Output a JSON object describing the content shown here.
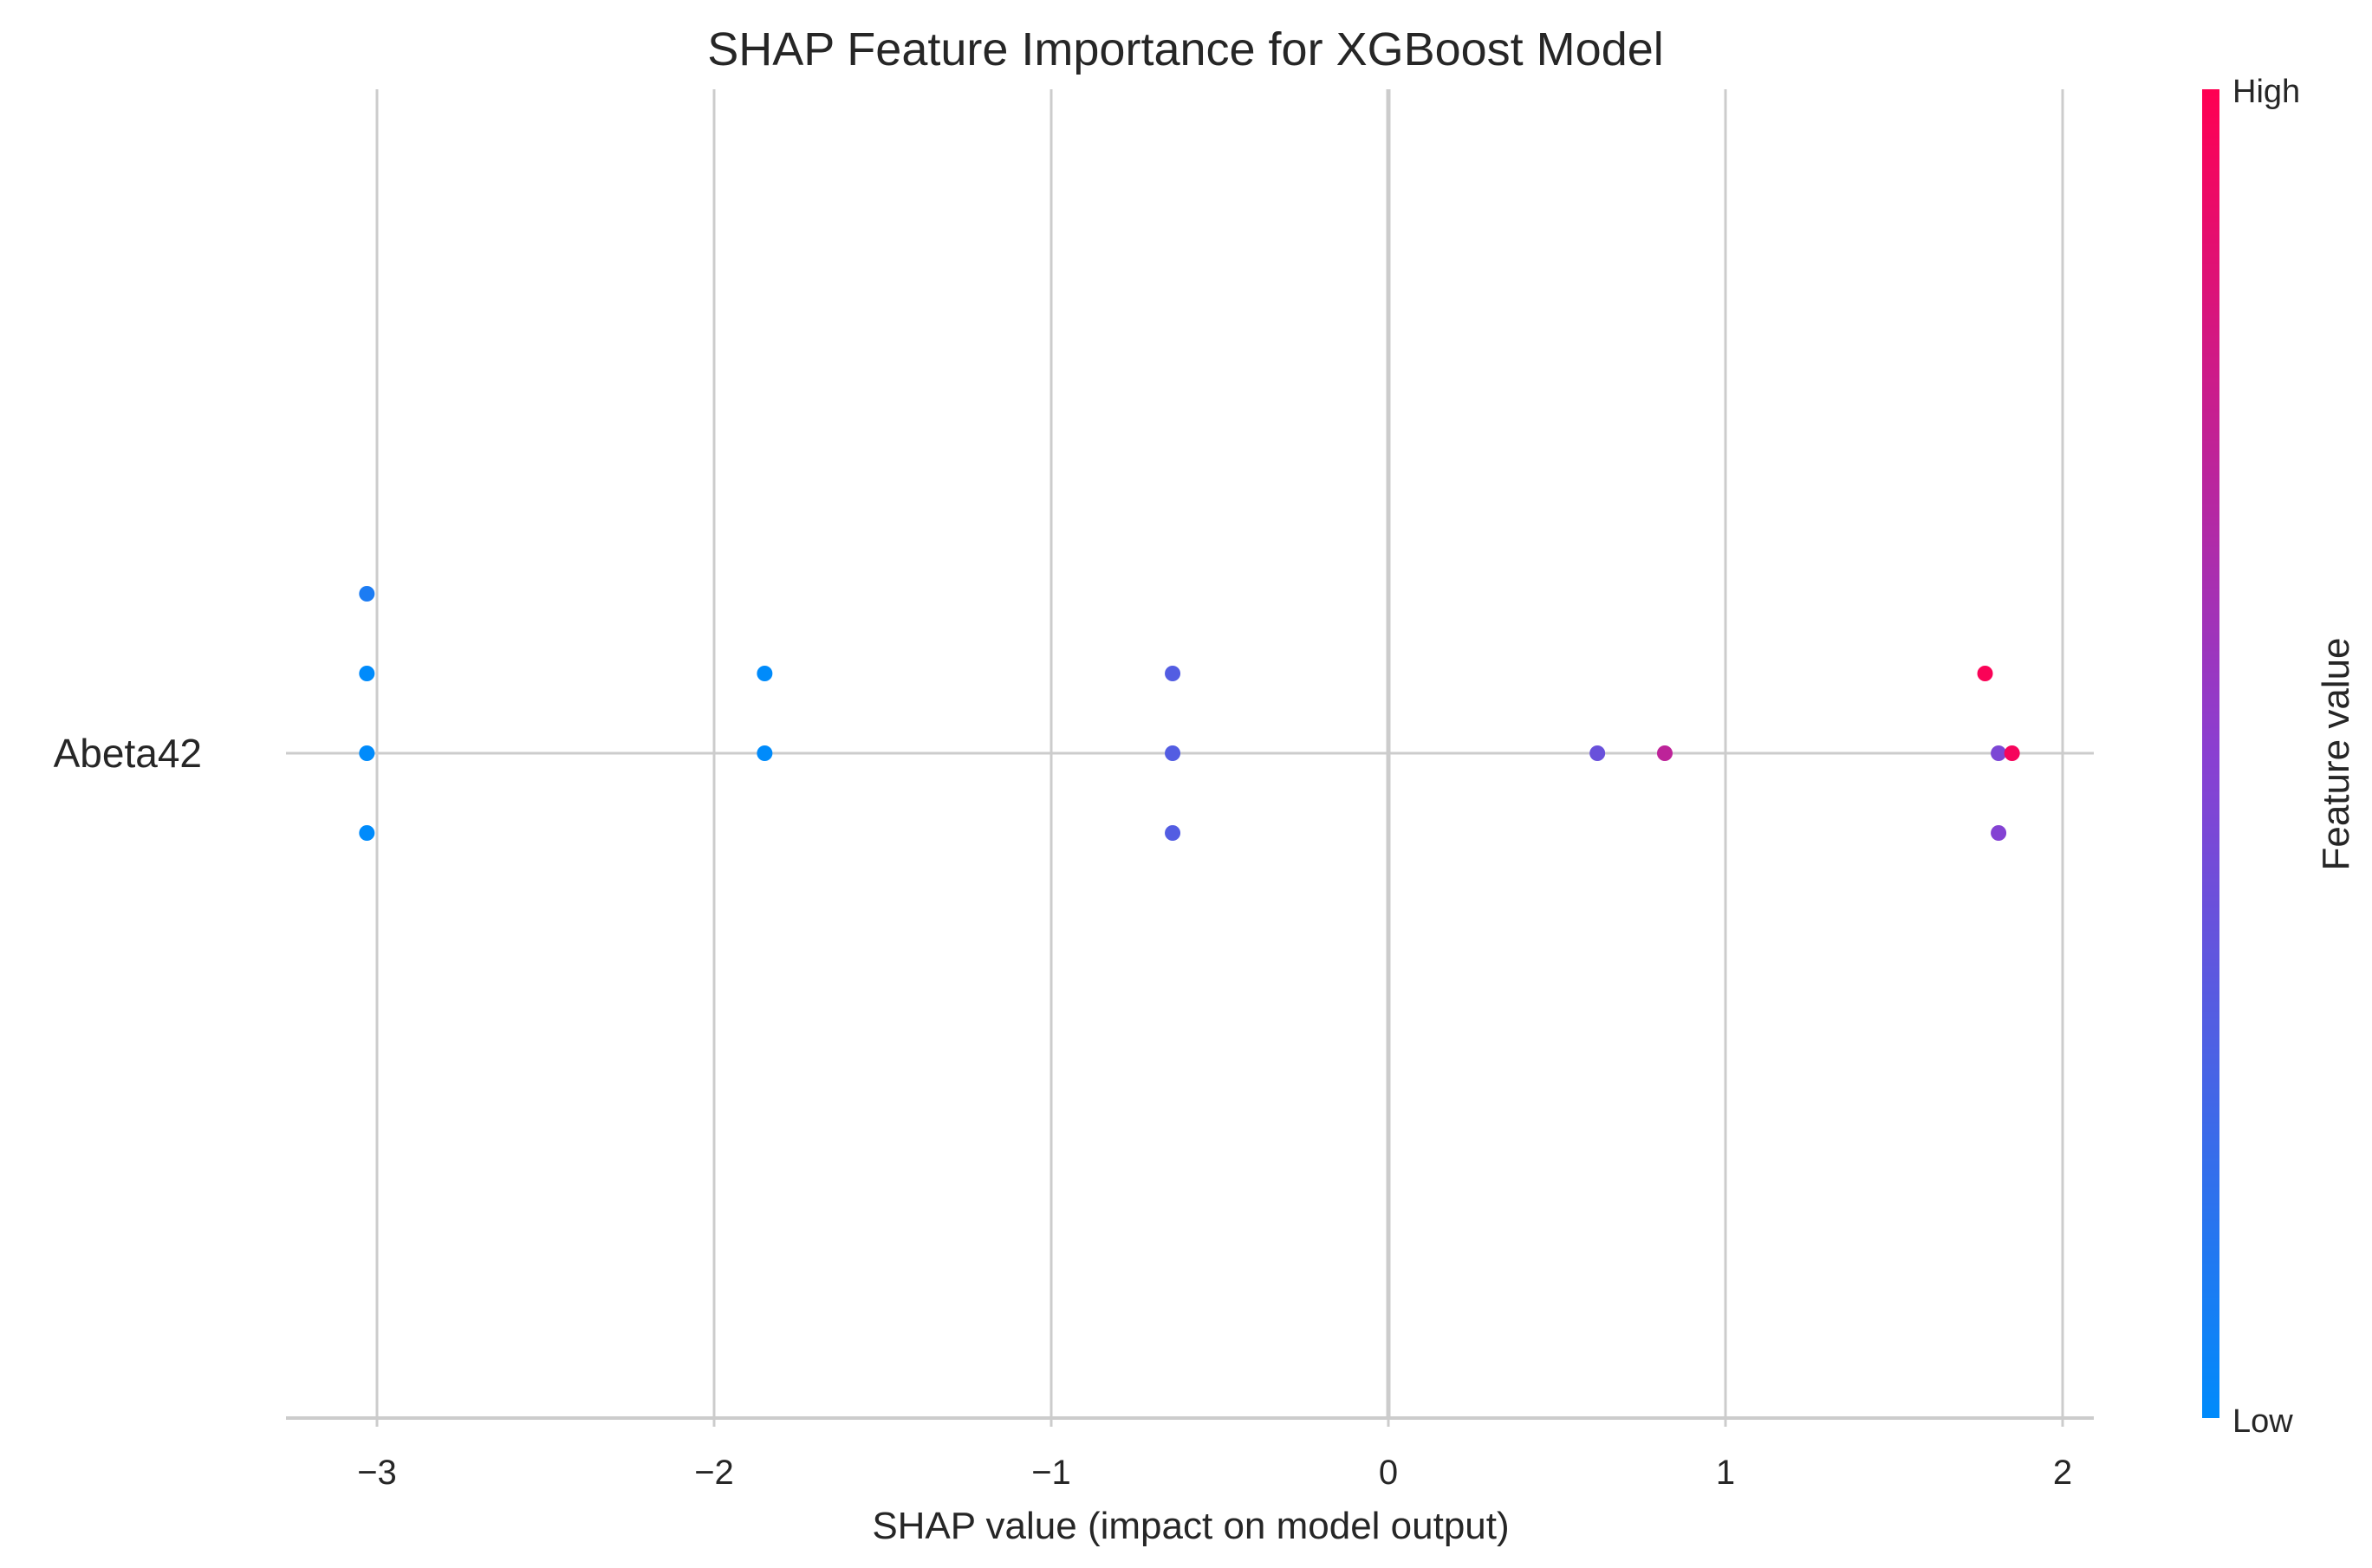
{
  "chart_data": {
    "type": "scatter",
    "title": "SHAP Feature Importance for XGBoost Model",
    "xlabel": "SHAP value (impact on model output)",
    "xlim": [
      -3.3,
      2.1
    ],
    "xticks": [
      -3,
      -2,
      -1,
      0,
      1,
      2
    ],
    "xtick_labels": [
      "−3",
      "−2",
      "−1",
      "0",
      "1",
      "2"
    ],
    "features": [
      "Abeta42"
    ],
    "grid": true,
    "colorbar": {
      "label": "Feature value",
      "high_label": "High",
      "low_label": "Low",
      "low_color": "#008bfb",
      "high_color": "#ff0052"
    },
    "points": [
      {
        "feature": "Abeta42",
        "shap": -3.03,
        "lane": 2,
        "value": 0.1
      },
      {
        "feature": "Abeta42",
        "shap": -3.03,
        "lane": 1,
        "value": 0.0
      },
      {
        "feature": "Abeta42",
        "shap": -3.03,
        "lane": 0,
        "value": 0.0
      },
      {
        "feature": "Abeta42",
        "shap": -3.03,
        "lane": -1,
        "value": 0.0
      },
      {
        "feature": "Abeta42",
        "shap": -1.85,
        "lane": 1,
        "value": 0.0
      },
      {
        "feature": "Abeta42",
        "shap": -1.85,
        "lane": 0,
        "value": 0.0
      },
      {
        "feature": "Abeta42",
        "shap": -0.64,
        "lane": 1,
        "value": 0.3
      },
      {
        "feature": "Abeta42",
        "shap": -0.64,
        "lane": 0,
        "value": 0.3
      },
      {
        "feature": "Abeta42",
        "shap": -0.64,
        "lane": -1,
        "value": 0.3
      },
      {
        "feature": "Abeta42",
        "shap": 0.62,
        "lane": 0,
        "value": 0.38
      },
      {
        "feature": "Abeta42",
        "shap": 0.82,
        "lane": 0,
        "value": 0.72
      },
      {
        "feature": "Abeta42",
        "shap": 1.77,
        "lane": 1,
        "value": 0.98
      },
      {
        "feature": "Abeta42",
        "shap": 1.81,
        "lane": 0,
        "value": 0.45
      },
      {
        "feature": "Abeta42",
        "shap": 1.85,
        "lane": 0,
        "value": 0.96
      },
      {
        "feature": "Abeta42",
        "shap": 1.81,
        "lane": -1,
        "value": 0.48
      }
    ]
  }
}
